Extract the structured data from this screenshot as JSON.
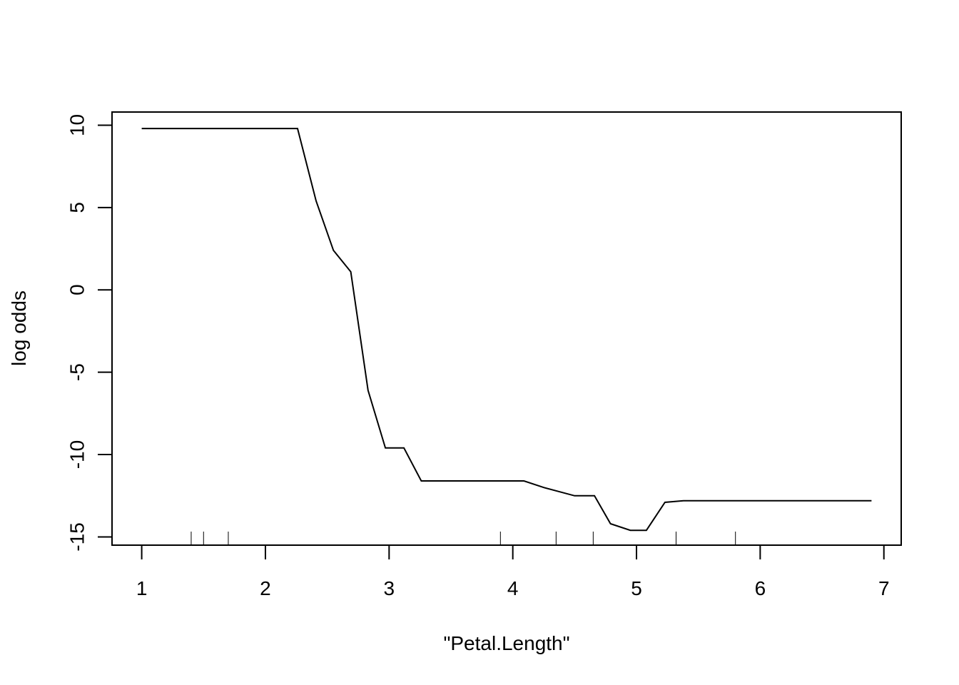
{
  "chart_data": {
    "type": "line",
    "title": "",
    "xlabel": "\"Petal.Length\"",
    "ylabel": "log odds",
    "xlim": [
      0.76,
      7.14
    ],
    "ylim": [
      -15.5,
      10.8
    ],
    "xticks": [
      1,
      2,
      3,
      4,
      5,
      6,
      7
    ],
    "yticks": [
      -15,
      -10,
      -5,
      0,
      5,
      10
    ],
    "xtick_labels": [
      "1",
      "2",
      "3",
      "4",
      "5",
      "6",
      "7"
    ],
    "ytick_labels": [
      "-15",
      "-10",
      "-5",
      "0",
      "5",
      "10"
    ],
    "grid": false,
    "legend": "none",
    "line_color": "#000000",
    "series": [
      {
        "x": [
          1.0,
          2.26,
          2.41,
          2.55,
          2.69,
          2.83,
          2.97,
          3.12,
          3.26,
          3.4,
          3.54,
          3.69,
          3.83,
          3.97,
          4.09,
          4.25,
          4.5,
          4.66,
          4.79,
          4.95,
          5.08,
          5.23,
          5.38,
          5.55,
          6.9
        ],
        "y": [
          9.8,
          9.8,
          5.4,
          2.4,
          1.1,
          -6.1,
          -9.6,
          -9.6,
          -11.6,
          -11.6,
          -11.6,
          -11.6,
          -11.6,
          -11.6,
          -11.6,
          -12.0,
          -12.5,
          -12.5,
          -14.2,
          -14.6,
          -14.6,
          -12.9,
          -12.8,
          -12.8,
          -12.8
        ]
      }
    ],
    "rug": [
      1.4,
      1.5,
      1.7,
      3.9,
      4.35,
      4.65,
      5.32,
      5.8
    ]
  }
}
